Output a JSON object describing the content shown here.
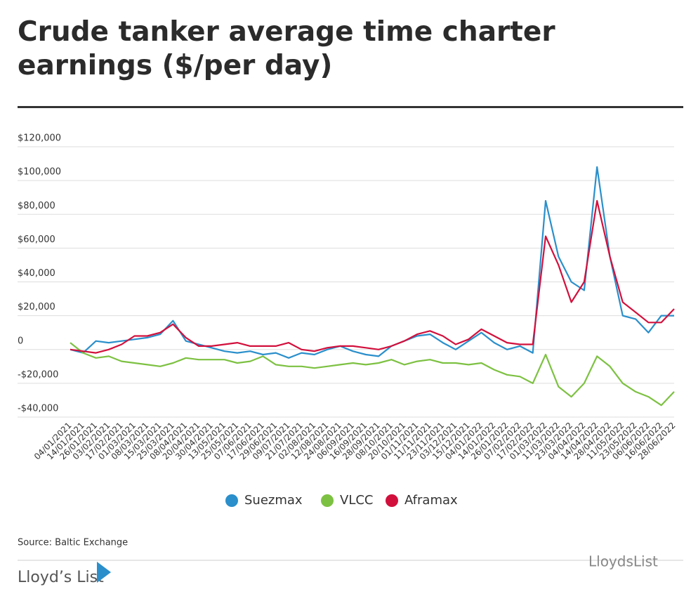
{
  "chart_data": {
    "type": "line",
    "title": "Crude tanker average time charter earnings ($/per day)",
    "source": "Source: Baltic Exchange",
    "brand": "Lloyd’s List",
    "watermark": "LloydsList",
    "categories": [
      "04/01/2021",
      "14/01/2021",
      "26/01/2021",
      "03/02/2021",
      "17/02/2021",
      "01/03/2021",
      "08/03/2021",
      "15/03/2021",
      "25/03/2021",
      "08/04/2021",
      "20/04/2021",
      "30/04/2021",
      "13/05/2021",
      "25/05/2021",
      "07/06/2021",
      "17/06/2021",
      "29/06/2021",
      "09/07/2021",
      "21/07/2021",
      "02/08/2021",
      "12/08/2021",
      "24/08/2021",
      "06/09/2021",
      "16/09/2021",
      "28/09/2021",
      "08/10/2021",
      "20/10/2021",
      "01/11/2021",
      "11/11/2021",
      "23/11/2021",
      "03/12/2021",
      "15/12/2021",
      "04/01/2022",
      "14/01/2022",
      "26/01/2022",
      "07/02/2022",
      "17/02/2022",
      "01/03/2022",
      "11/03/2022",
      "23/03/2022",
      "04/04/2022",
      "14/04/2022",
      "28/04/2022",
      "11/05/2022",
      "23/05/2022",
      "06/06/2022",
      "16/06/2022",
      "28/06/2022"
    ],
    "series": [
      {
        "name": "Suezmax",
        "color": "#2a8fcb",
        "values": [
          0,
          -2000,
          5000,
          4000,
          5000,
          6000,
          7000,
          9000,
          17000,
          5000,
          3000,
          1000,
          -1000,
          -2000,
          -1000,
          -3000,
          -2000,
          -5000,
          -2000,
          -3000,
          0,
          2000,
          -1000,
          -3000,
          -4000,
          2000,
          5000,
          8000,
          9000,
          4000,
          0,
          5000,
          10000,
          4000,
          0,
          2000,
          -2000,
          88000,
          55000,
          40000,
          35000,
          108000,
          55000,
          20000,
          18000,
          10000,
          20000,
          20000
        ]
      },
      {
        "name": "VLCC",
        "color": "#7dc142",
        "values": [
          4000,
          -2000,
          -5000,
          -4000,
          -7000,
          -8000,
          -9000,
          -10000,
          -8000,
          -5000,
          -6000,
          -6000,
          -6000,
          -8000,
          -7000,
          -4000,
          -9000,
          -10000,
          -10000,
          -11000,
          -10000,
          -9000,
          -8000,
          -9000,
          -8000,
          -6000,
          -9000,
          -7000,
          -6000,
          -8000,
          -8000,
          -9000,
          -8000,
          -12000,
          -15000,
          -16000,
          -20000,
          -3000,
          -22000,
          -28000,
          -20000,
          -4000,
          -10000,
          -20000,
          -25000,
          -28000,
          -33000,
          -25000
        ]
      },
      {
        "name": "Aframax",
        "color": "#d2103c",
        "values": [
          0,
          -1000,
          -2000,
          0,
          3000,
          8000,
          8000,
          10000,
          15000,
          7000,
          2000,
          2000,
          3000,
          4000,
          2000,
          2000,
          2000,
          4000,
          0,
          -1000,
          1000,
          2000,
          2000,
          1000,
          0,
          2000,
          5000,
          9000,
          11000,
          8000,
          3000,
          6000,
          12000,
          8000,
          4000,
          3000,
          3000,
          67000,
          50000,
          28000,
          40000,
          88000,
          55000,
          28000,
          22000,
          16000,
          16000,
          24000
        ]
      }
    ],
    "ylim": [
      -40000,
      120000
    ],
    "yticks": [
      {
        "value": -40000,
        "label": "-$40,000"
      },
      {
        "value": -20000,
        "label": "-$20,000"
      },
      0,
      {
        "value": 20000,
        "label": "$20,000"
      },
      {
        "value": 40000,
        "label": "$40,000"
      },
      {
        "value": 60000,
        "label": "$60,000"
      },
      {
        "value": 80000,
        "label": "$80,000"
      },
      {
        "value": 100000,
        "label": "$100,000"
      },
      {
        "value": 120000,
        "label": "$120,000"
      }
    ],
    "grid": true,
    "legend": "bottom"
  }
}
